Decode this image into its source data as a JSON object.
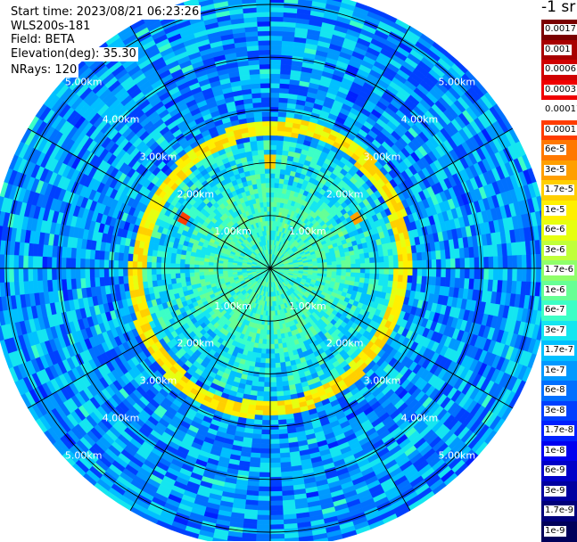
{
  "header": {
    "start_time": "Start time: 2023/08/21 06:23:26",
    "instrument": "WLS200s-181",
    "field": "Field: BETA",
    "elevation": "Elevation(deg): 35.30",
    "nrays": "NRays: 120"
  },
  "colorbar": {
    "unit": "-1 sr",
    "labels": [
      "0.0017",
      "0.001",
      "0.0006",
      "0.0003",
      "0.00017",
      "0.0001",
      "6e-5",
      "3e-5",
      "1.7e-5",
      "1e-5",
      "6e-6",
      "3e-6",
      "1.7e-6",
      "1e-6",
      "6e-7",
      "3e-7",
      "1.7e-7",
      "1e-7",
      "6e-8",
      "3e-8",
      "1.7e-8",
      "1e-8",
      "6e-9",
      "3e-9",
      "1.7e-9",
      "1e-9"
    ],
    "colors": [
      "#7a0000",
      "#a80000",
      "#d00000",
      "#f00000",
      "#ffffff",
      "#ff3c00",
      "#ff7800",
      "#ff9f00",
      "#ffcf00",
      "#fff000",
      "#e6ff10",
      "#c0ff3a",
      "#8fff6a",
      "#66ff95",
      "#3cffc6",
      "#14e6f0",
      "#00c0ff",
      "#0099ff",
      "#0070ff",
      "#0040ff",
      "#0020ff",
      "#0000f0",
      "#0000c8",
      "#0000a0",
      "#00007a",
      "#00005a"
    ]
  },
  "chart_data": {
    "type": "heatmap",
    "projection": "polar PPI",
    "field": "BETA",
    "unit": "-1 sr",
    "scale": "log",
    "vmin": 1e-09,
    "vmax": 0.0017,
    "n_rays": 120,
    "elevation_deg": 35.3,
    "max_range_km": 5.3,
    "range_rings_km": [
      1,
      2,
      3,
      4,
      5
    ],
    "ring_labels": [
      "1.00km",
      "2.00km",
      "3.00km",
      "4.00km",
      "5.00km"
    ],
    "spoke_angles_deg": [
      0,
      30,
      60,
      90,
      120,
      150,
      180,
      210,
      240,
      270,
      300,
      330
    ],
    "features": {
      "background_level": 1e-07,
      "near_field_level": 6e-07,
      "ring_layer": {
        "range_km": [
          2.6,
          2.85
        ],
        "level": 1e-05
      },
      "hotspots": [
        {
          "range_km": 1.9,
          "azimuth_deg": 300,
          "level": 0.0001
        },
        {
          "range_km": 1.9,
          "azimuth_deg": 60,
          "level": 3e-05
        },
        {
          "range_km": 2.0,
          "azimuth_deg": 0,
          "level": 1.7e-05
        }
      ]
    }
  }
}
